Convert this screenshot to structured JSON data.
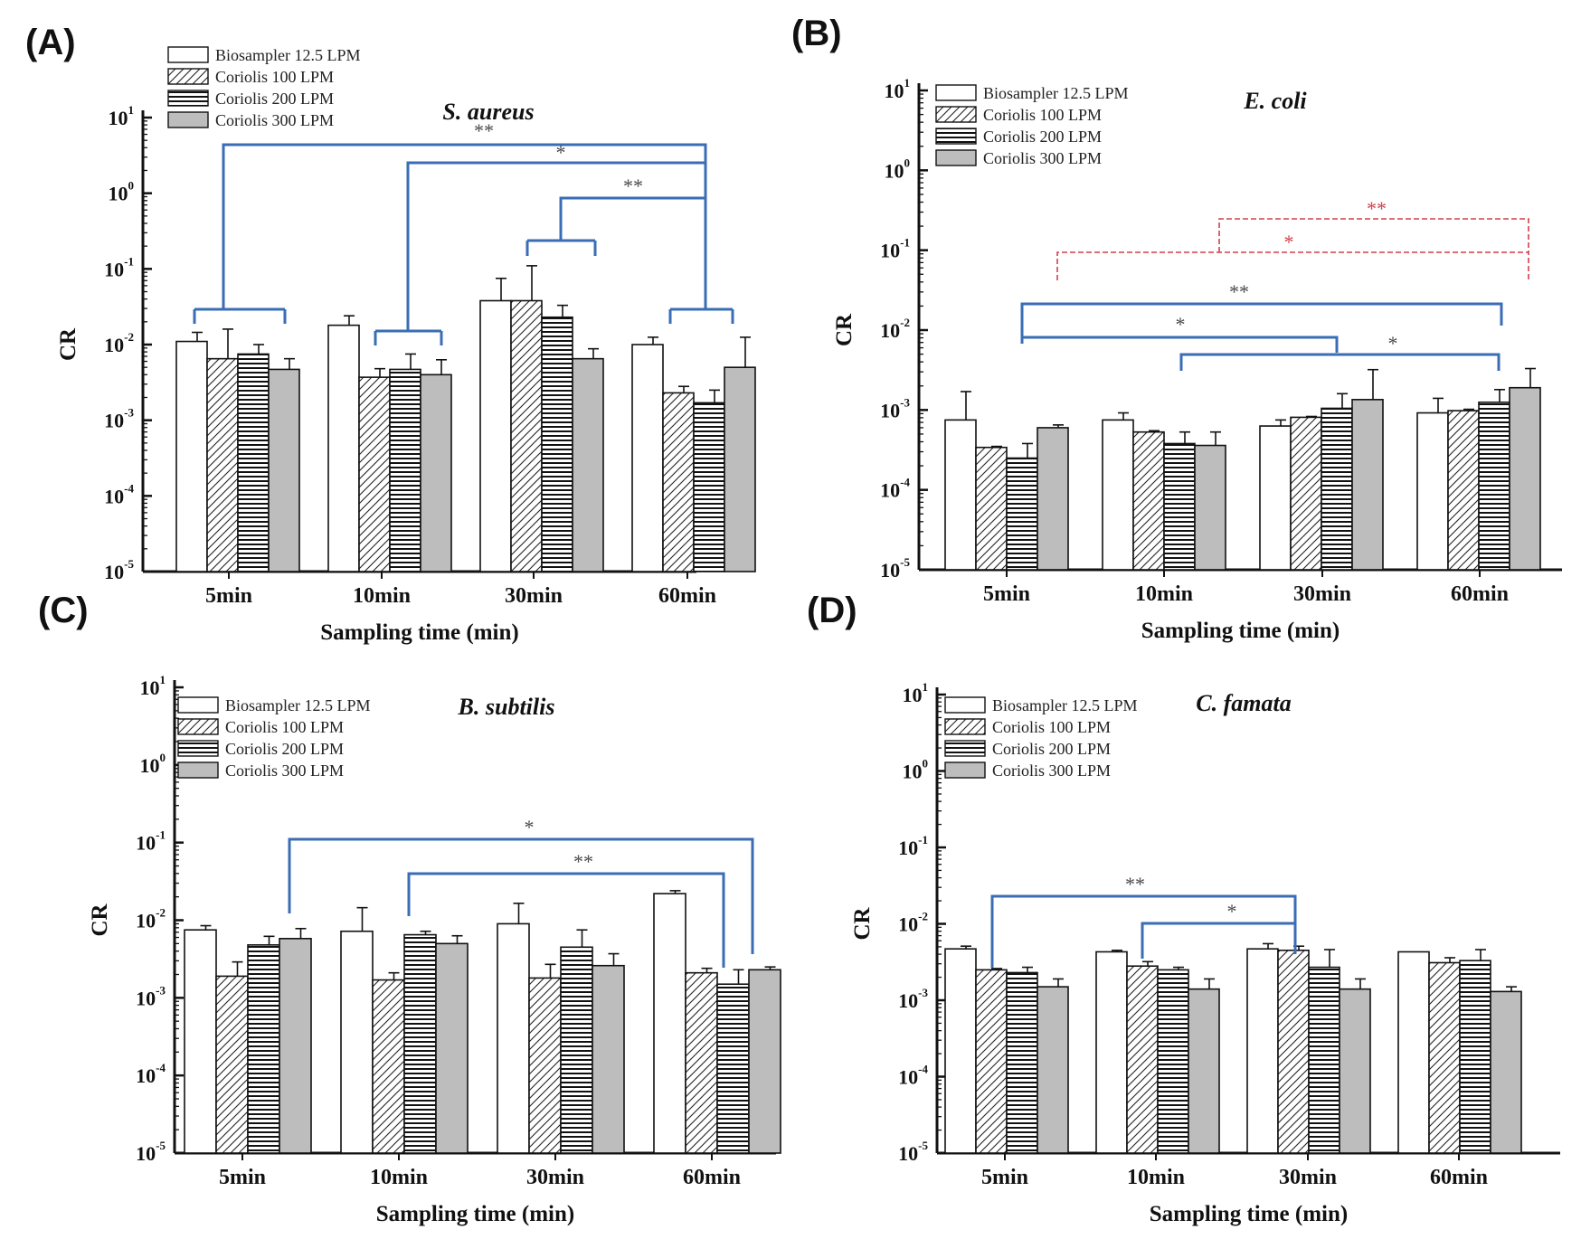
{
  "figure": {
    "colors": {
      "axis": "#111111",
      "bracket_blue": "#3a6db5",
      "bracket_red": "#d0414c",
      "biosampler": "#ffffff",
      "coriolis_300": "#bdbdbd"
    }
  },
  "chart_data": [
    {
      "id": "A",
      "panel_label": "(A)",
      "type": "bar",
      "title": "S. aureus",
      "ylabel": "CR",
      "xlabel": "Sampling time (min)",
      "yscale": "log",
      "ylim": [
        1e-05,
        10
      ],
      "yticks": [
        {
          "base": "10",
          "exp": "-5"
        },
        {
          "base": "10",
          "exp": "-4"
        },
        {
          "base": "10",
          "exp": "-3"
        },
        {
          "base": "10",
          "exp": "-2"
        },
        {
          "base": "10",
          "exp": "-1"
        },
        {
          "base": "10",
          "exp": "0"
        },
        {
          "base": "10",
          "exp": "1"
        }
      ],
      "categories": [
        "5min",
        "10min",
        "30min",
        "60min"
      ],
      "series": [
        {
          "name": "Biosampler 12.5 LPM",
          "pattern": "white",
          "values": [
            0.011,
            0.018,
            0.038,
            0.01
          ],
          "errors": [
            0.0145,
            0.024,
            0.075,
            0.0125
          ]
        },
        {
          "name": "Coriolis 100 LPM",
          "pattern": "diagonal",
          "values": [
            0.0065,
            0.0037,
            0.038,
            0.0023
          ],
          "errors": [
            0.016,
            0.0048,
            0.11,
            0.0028
          ]
        },
        {
          "name": "Coriolis 200 LPM",
          "pattern": "horizontal",
          "values": [
            0.0075,
            0.0047,
            0.023,
            0.0017
          ],
          "errors": [
            0.01,
            0.0075,
            0.033,
            0.0025
          ]
        },
        {
          "name": "Coriolis 300 LPM",
          "pattern": "gray",
          "values": [
            0.0047,
            0.004,
            0.0065,
            0.005
          ],
          "errors": [
            0.0065,
            0.0063,
            0.0088,
            0.0125
          ]
        }
      ],
      "significance": [
        {
          "label": "**",
          "color": "blue",
          "dashed": false
        },
        {
          "label": "*",
          "color": "blue",
          "dashed": false
        },
        {
          "label": "**",
          "color": "blue",
          "dashed": false
        }
      ]
    },
    {
      "id": "B",
      "panel_label": "(B)",
      "type": "bar",
      "title": "E. coli",
      "ylabel": "CR",
      "xlabel": "Sampling time (min)",
      "yscale": "log",
      "ylim": [
        1e-05,
        10
      ],
      "yticks": [
        {
          "base": "10",
          "exp": "-5"
        },
        {
          "base": "10",
          "exp": "-4"
        },
        {
          "base": "10",
          "exp": "-3"
        },
        {
          "base": "10",
          "exp": "-2"
        },
        {
          "base": "10",
          "exp": "-1"
        },
        {
          "base": "10",
          "exp": "0"
        },
        {
          "base": "10",
          "exp": "1"
        }
      ],
      "categories": [
        "5min",
        "10min",
        "30min",
        "60min"
      ],
      "series": [
        {
          "name": "Biosampler 12.5 LPM",
          "pattern": "white",
          "values": [
            0.00075,
            0.00075,
            0.00063,
            0.00092
          ],
          "errors": [
            0.0017,
            0.00092,
            0.00075,
            0.0014
          ]
        },
        {
          "name": "Coriolis 100 LPM",
          "pattern": "diagonal",
          "values": [
            0.00034,
            0.00053,
            0.00081,
            0.00098
          ],
          "errors": [
            0.00035,
            0.00055,
            0.00083,
            0.00102
          ]
        },
        {
          "name": "Coriolis 200 LPM",
          "pattern": "horizontal",
          "values": [
            0.00025,
            0.00038,
            0.00105,
            0.00125
          ],
          "errors": [
            0.00038,
            0.00053,
            0.0016,
            0.0018
          ]
        },
        {
          "name": "Coriolis 300 LPM",
          "pattern": "gray",
          "values": [
            0.0006,
            0.00036,
            0.00135,
            0.0019
          ],
          "errors": [
            0.00065,
            0.00053,
            0.0032,
            0.0033
          ]
        }
      ],
      "significance": [
        {
          "label": "**",
          "color": "red",
          "dashed": true
        },
        {
          "label": "*",
          "color": "red",
          "dashed": true
        },
        {
          "label": "**",
          "color": "blue",
          "dashed": false
        },
        {
          "label": "*",
          "color": "blue",
          "dashed": false
        },
        {
          "label": "*",
          "color": "blue",
          "dashed": false
        }
      ]
    },
    {
      "id": "C",
      "panel_label": "(C)",
      "type": "bar",
      "title": "B. subtilis",
      "ylabel": "CR",
      "xlabel": "Sampling time (min)",
      "yscale": "log",
      "ylim": [
        1e-05,
        10
      ],
      "yticks": [
        {
          "base": "10",
          "exp": "-5"
        },
        {
          "base": "10",
          "exp": "-4"
        },
        {
          "base": "10",
          "exp": "-3"
        },
        {
          "base": "10",
          "exp": "-2"
        },
        {
          "base": "10",
          "exp": "-1"
        },
        {
          "base": "10",
          "exp": "0"
        },
        {
          "base": "10",
          "exp": "1"
        }
      ],
      "categories": [
        "5min",
        "10min",
        "30min",
        "60min"
      ],
      "series": [
        {
          "name": "Biosampler 12.5 LPM",
          "pattern": "white",
          "values": [
            0.0075,
            0.0072,
            0.009,
            0.022
          ],
          "errors": [
            0.0085,
            0.0145,
            0.0165,
            0.024
          ]
        },
        {
          "name": "Coriolis 100 LPM",
          "pattern": "diagonal",
          "values": [
            0.0019,
            0.0017,
            0.0018,
            0.0021
          ],
          "errors": [
            0.0029,
            0.0021,
            0.0027,
            0.0024
          ]
        },
        {
          "name": "Coriolis 200 LPM",
          "pattern": "horizontal",
          "values": [
            0.0048,
            0.0065,
            0.0045,
            0.0015
          ],
          "errors": [
            0.0062,
            0.0072,
            0.0075,
            0.0023
          ]
        },
        {
          "name": "Coriolis 300 LPM",
          "pattern": "gray",
          "values": [
            0.0058,
            0.005,
            0.0026,
            0.0023
          ],
          "errors": [
            0.0078,
            0.0063,
            0.0037,
            0.0025
          ]
        }
      ],
      "significance": [
        {
          "label": "*",
          "color": "blue",
          "dashed": false
        },
        {
          "label": "**",
          "color": "blue",
          "dashed": false
        }
      ]
    },
    {
      "id": "D",
      "panel_label": "(D)",
      "type": "bar",
      "title": "C. famata",
      "ylabel": "CR",
      "xlabel": "Sampling time (min)",
      "yscale": "log",
      "ylim": [
        1e-05,
        10
      ],
      "yticks": [
        {
          "base": "10",
          "exp": "-5"
        },
        {
          "base": "10",
          "exp": "-4"
        },
        {
          "base": "10",
          "exp": "-3"
        },
        {
          "base": "10",
          "exp": "-2"
        },
        {
          "base": "10",
          "exp": "-1"
        },
        {
          "base": "10",
          "exp": "0"
        },
        {
          "base": "10",
          "exp": "1"
        }
      ],
      "categories": [
        "5min",
        "10min",
        "30min",
        "60min"
      ],
      "series": [
        {
          "name": "Biosampler 12.5 LPM",
          "pattern": "white",
          "values": [
            0.0047,
            0.0043,
            0.0047,
            0.0043
          ],
          "errors": [
            0.0051,
            0.0045,
            0.0055,
            0.0043
          ]
        },
        {
          "name": "Coriolis 100 LPM",
          "pattern": "diagonal",
          "values": [
            0.0025,
            0.0028,
            0.0045,
            0.0031
          ],
          "errors": [
            0.0026,
            0.0032,
            0.0051,
            0.0036
          ]
        },
        {
          "name": "Coriolis 200 LPM",
          "pattern": "horizontal",
          "values": [
            0.0023,
            0.0025,
            0.0027,
            0.0033
          ],
          "errors": [
            0.0027,
            0.0027,
            0.0046,
            0.0046
          ]
        },
        {
          "name": "Coriolis 300 LPM",
          "pattern": "gray",
          "values": [
            0.0015,
            0.0014,
            0.0014,
            0.0013
          ],
          "errors": [
            0.0019,
            0.0019,
            0.0019,
            0.0015
          ]
        }
      ],
      "significance": [
        {
          "label": "**",
          "color": "blue",
          "dashed": false
        },
        {
          "label": "*",
          "color": "blue",
          "dashed": false
        }
      ]
    }
  ]
}
